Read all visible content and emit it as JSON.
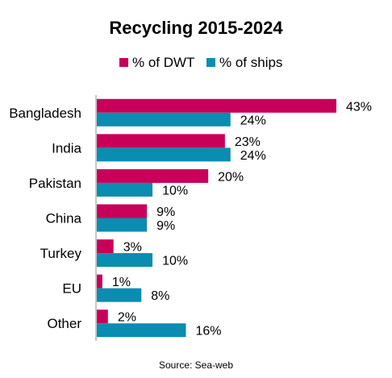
{
  "chart_data": {
    "type": "bar",
    "orientation": "horizontal",
    "title": "Recycling 2015-2024",
    "categories": [
      "Bangladesh",
      "India",
      "Pakistan",
      "China",
      "Turkey",
      "EU",
      "Other"
    ],
    "series": [
      {
        "name": "% of DWT",
        "color": "#C8005A",
        "values": [
          43,
          23,
          20,
          9,
          3,
          1,
          2
        ],
        "labels": [
          "43%",
          "23%",
          "20%",
          "9%",
          "3%",
          "1%",
          "2%"
        ]
      },
      {
        "name": "% of ships",
        "color": "#0A8DB0",
        "values": [
          24,
          24,
          10,
          9,
          10,
          8,
          16
        ],
        "labels": [
          "24%",
          "24%",
          "10%",
          "9%",
          "10%",
          "8%",
          "16%"
        ]
      }
    ],
    "legend_position": "top",
    "grid": false,
    "xlim": [
      0,
      43
    ]
  },
  "source": "Source: Sea-web"
}
